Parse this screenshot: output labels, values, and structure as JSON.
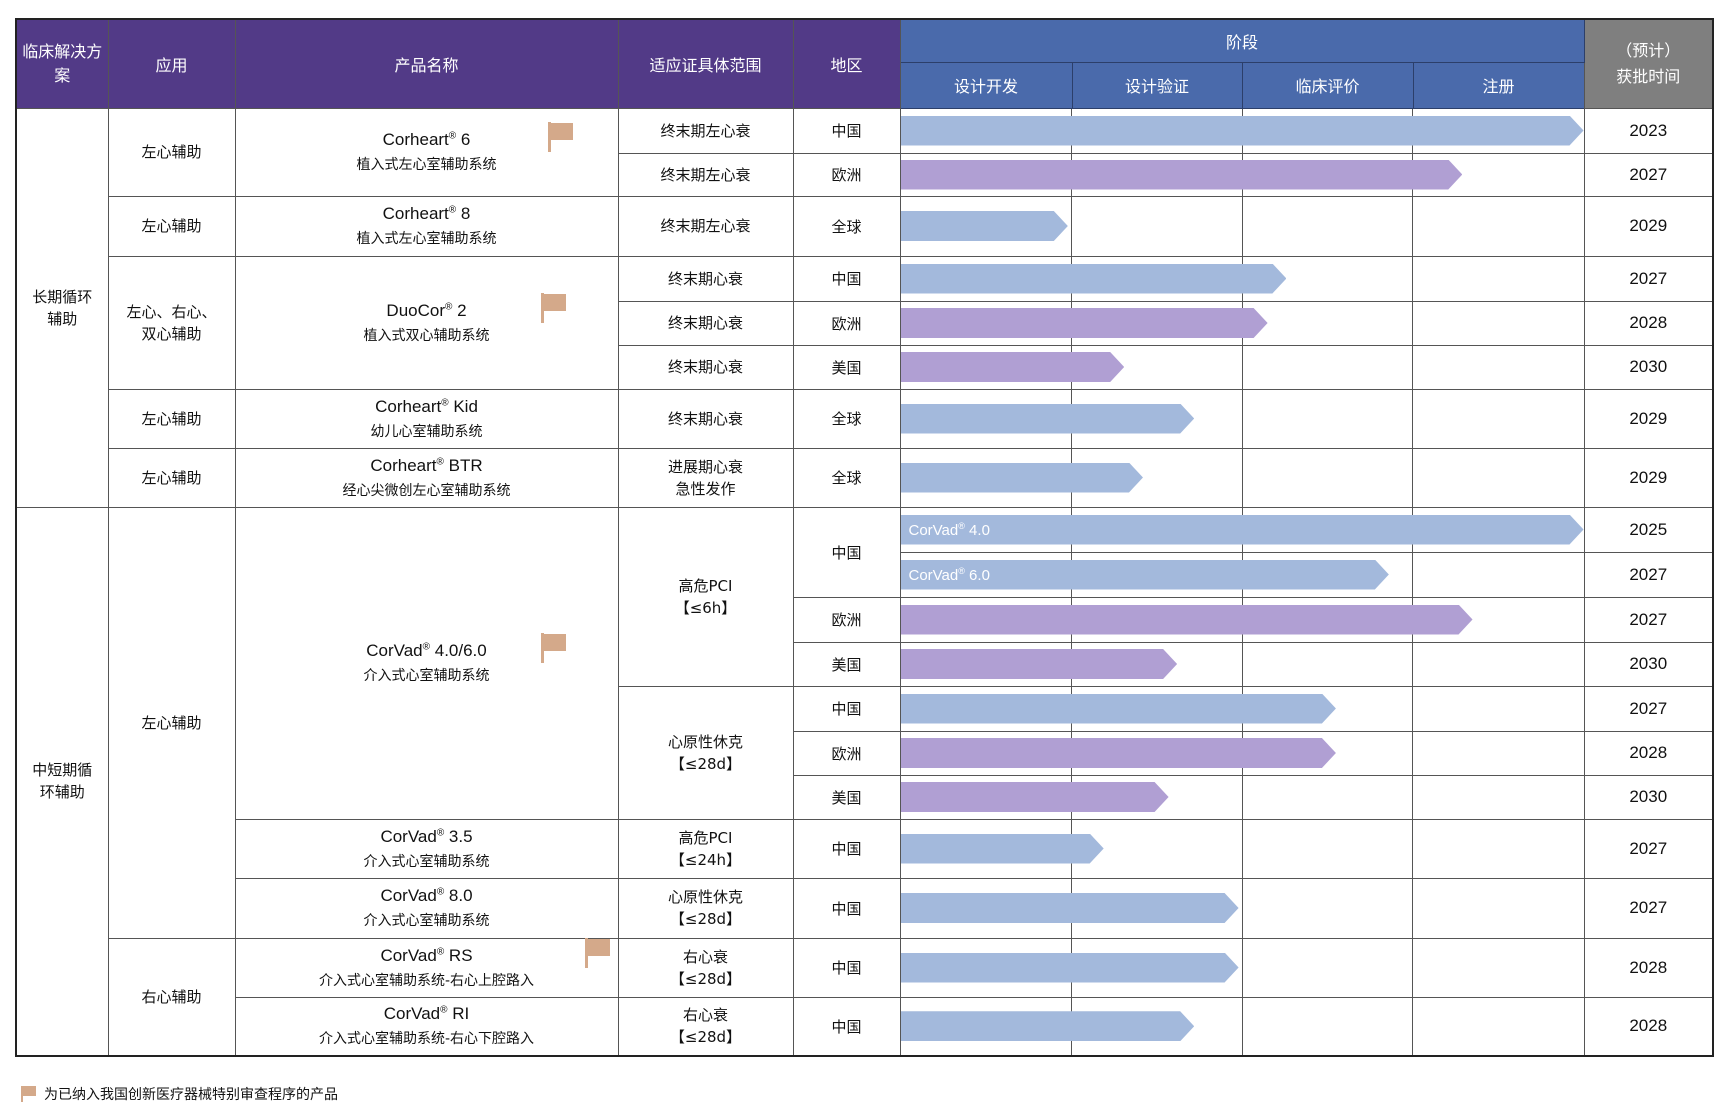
{
  "header": {
    "solution": "临床解决方案",
    "application": "应用",
    "product": "产品名称",
    "indication": "适应证具体范围",
    "region": "地区",
    "stage": "阶段",
    "stages": [
      "设计开发",
      "设计验证",
      "临床评价",
      "注册"
    ],
    "year_line1": "（预计）",
    "year_line2": "获批时间"
  },
  "solutions": [
    "长期循环辅助",
    "中短期循环辅助"
  ],
  "applications": [
    {
      "l1": "左心辅助"
    },
    {
      "l1": "左心辅助"
    },
    {
      "l1": "左心、右心、",
      "l2": "双心辅助"
    },
    {
      "l1": "左心辅助"
    },
    {
      "l1": "左心辅助"
    },
    {
      "l1": "左心辅助"
    },
    {
      "l1": "右心辅助"
    }
  ],
  "products": [
    {
      "name": "Corheart",
      "reg": "®",
      "model": " 6",
      "desc": "植入式左心室辅助系统",
      "flag": true
    },
    {
      "name": "Corheart",
      "reg": "®",
      "model": " 8",
      "desc": "植入式左心室辅助系统",
      "flag": false
    },
    {
      "name": "DuoCor",
      "reg": "®",
      "model": " 2",
      "desc": "植入式双心辅助系统",
      "flag": true
    },
    {
      "name": "Corheart",
      "reg": "®",
      "model": " Kid",
      "desc": "幼儿心室辅助系统",
      "flag": false
    },
    {
      "name": "Corheart",
      "reg": "®",
      "model": " BTR",
      "desc": "经心尖微创左心室辅助系统",
      "flag": false
    },
    {
      "name": "CorVad",
      "reg": "®",
      "model": " 4.0/6.0",
      "desc": "介入式心室辅助系统",
      "flag": true
    },
    {
      "name": "CorVad",
      "reg": "®",
      "model": " 3.5",
      "desc": "介入式心室辅助系统",
      "flag": false
    },
    {
      "name": "CorVad",
      "reg": "®",
      "model": " 8.0",
      "desc": "介入式心室辅助系统",
      "flag": false
    },
    {
      "name": "CorVad",
      "reg": "®",
      "model": " RS",
      "desc": "介入式心室辅助系统-右心上腔路入",
      "flag": true
    },
    {
      "name": "CorVad",
      "reg": "®",
      "model": " RI",
      "desc": "介入式心室辅助系统-右心下腔路入",
      "flag": false
    }
  ],
  "indications": [
    {
      "l1": "终末期左心衰"
    },
    {
      "l1": "终末期左心衰"
    },
    {
      "l1": "终末期左心衰"
    },
    {
      "l1": "终末期心衰"
    },
    {
      "l1": "终末期心衰"
    },
    {
      "l1": "终末期心衰"
    },
    {
      "l1": "终末期心衰"
    },
    {
      "l1": "进展期心衰",
      "l2": "急性发作"
    },
    {
      "l1": "高危PCI",
      "l2": "【≤6h】"
    },
    {
      "l1": "心原性休克",
      "l2": "【≤28d】"
    },
    {
      "l1": "高危PCI",
      "l2": "【≤24h】"
    },
    {
      "l1": "心原性休克",
      "l2": "【≤28d】"
    },
    {
      "l1": "右心衰",
      "l2": "【≤28d】"
    },
    {
      "l1": "右心衰",
      "l2": "【≤28d】"
    }
  ],
  "colors": {
    "header_purple": "#523a87",
    "header_blue": "#4a6aab",
    "header_gray": "#7f7f7f",
    "bar_blue": "#a3b9dc",
    "bar_purple": "#b09fd3",
    "flag": "#d4a98a"
  },
  "rows": [
    {
      "region": "中国",
      "progress_stages": 4.0,
      "bar_color": "#a3b9dc",
      "year": "2023"
    },
    {
      "region": "欧洲",
      "progress_stages": 3.29,
      "bar_color": "#b09fd3",
      "year": "2027"
    },
    {
      "region": "全球",
      "progress_stages": 0.98,
      "bar_color": "#a3b9dc",
      "year": "2029"
    },
    {
      "region": "中国",
      "progress_stages": 2.26,
      "bar_color": "#a3b9dc",
      "year": "2027"
    },
    {
      "region": "欧洲",
      "progress_stages": 2.15,
      "bar_color": "#b09fd3",
      "year": "2028"
    },
    {
      "region": "美国",
      "progress_stages": 1.31,
      "bar_color": "#b09fd3",
      "year": "2030"
    },
    {
      "region": "全球",
      "progress_stages": 1.72,
      "bar_color": "#a3b9dc",
      "year": "2029"
    },
    {
      "region": "全球",
      "progress_stages": 1.42,
      "bar_color": "#a3b9dc",
      "year": "2029"
    },
    {
      "region": "中国",
      "progress_stages": 4.0,
      "bar_color": "#a3b9dc",
      "year": "2025",
      "bar_name": "CorVad",
      "bar_reg": "®",
      "bar_model": " 4.0"
    },
    {
      "progress_stages": 2.86,
      "bar_color": "#a3b9dc",
      "year": "2027",
      "bar_name": "CorVad",
      "bar_reg": "®",
      "bar_model": " 6.0"
    },
    {
      "region": "欧洲",
      "progress_stages": 3.35,
      "bar_color": "#b09fd3",
      "year": "2027"
    },
    {
      "region": "美国",
      "progress_stages": 1.62,
      "bar_color": "#b09fd3",
      "year": "2030"
    },
    {
      "region": "中国",
      "progress_stages": 2.55,
      "bar_color": "#a3b9dc",
      "year": "2027"
    },
    {
      "region": "欧洲",
      "progress_stages": 2.55,
      "bar_color": "#b09fd3",
      "year": "2028"
    },
    {
      "region": "美国",
      "progress_stages": 1.57,
      "bar_color": "#b09fd3",
      "year": "2030"
    },
    {
      "region": "中国",
      "progress_stages": 1.19,
      "bar_color": "#a3b9dc",
      "year": "2027"
    },
    {
      "region": "中国",
      "progress_stages": 1.98,
      "bar_color": "#a3b9dc",
      "year": "2027"
    },
    {
      "region": "中国",
      "progress_stages": 1.98,
      "bar_color": "#a3b9dc",
      "year": "2028"
    },
    {
      "region": "中国",
      "progress_stages": 1.72,
      "bar_color": "#a3b9dc",
      "year": "2028"
    }
  ],
  "footnote": "为已纳入我国创新医疗器械特别审查程序的产品"
}
